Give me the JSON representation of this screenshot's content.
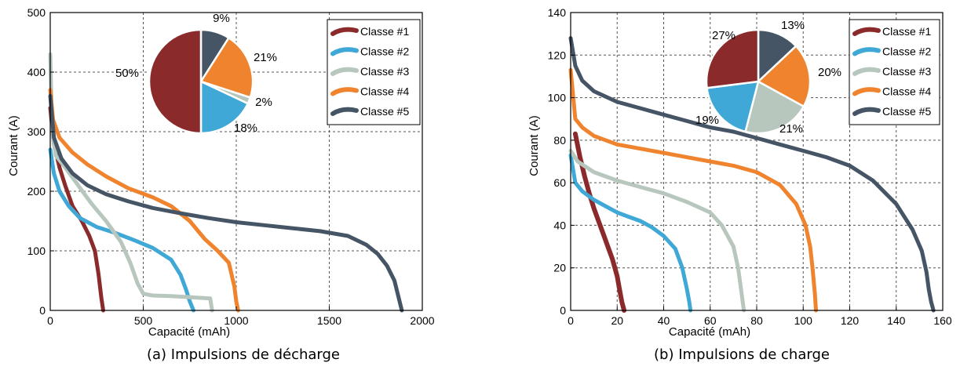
{
  "colors": {
    "Classe #1": "#8B2A2A",
    "Classe #2": "#3FA8D6",
    "Classe #3": "#B8C7BE",
    "Classe #4": "#F0842E",
    "Classe #5": "#465565"
  },
  "chart_data": [
    {
      "type": "line",
      "caption": "(a) Impulsions de décharge",
      "xlabel": "Capacité (mAh)",
      "ylabel": "Courant (A)",
      "xlim": [
        0,
        2000
      ],
      "ylim": [
        0,
        500
      ],
      "xticks": [
        0,
        500,
        1000,
        1500,
        2000
      ],
      "yticks": [
        0,
        100,
        200,
        300,
        400,
        500
      ],
      "grid": true,
      "legend": "top-right",
      "series": [
        {
          "name": "Classe #1",
          "points": [
            [
              0,
              340
            ],
            [
              20,
              280
            ],
            [
              50,
              240
            ],
            [
              80,
              210
            ],
            [
              120,
              175
            ],
            [
              170,
              150
            ],
            [
              210,
              125
            ],
            [
              240,
              100
            ],
            [
              260,
              60
            ],
            [
              275,
              20
            ],
            [
              285,
              0
            ]
          ]
        },
        {
          "name": "Classe #2",
          "points": [
            [
              0,
              270
            ],
            [
              20,
              230
            ],
            [
              50,
              200
            ],
            [
              100,
              175
            ],
            [
              160,
              155
            ],
            [
              250,
              140
            ],
            [
              350,
              130
            ],
            [
              450,
              118
            ],
            [
              550,
              105
            ],
            [
              650,
              85
            ],
            [
              700,
              60
            ],
            [
              730,
              35
            ],
            [
              750,
              15
            ],
            [
              770,
              0
            ]
          ]
        },
        {
          "name": "Classe #3",
          "points": [
            [
              0,
              430
            ],
            [
              10,
              300
            ],
            [
              30,
              260
            ],
            [
              80,
              240
            ],
            [
              150,
              210
            ],
            [
              220,
              180
            ],
            [
              300,
              150
            ],
            [
              380,
              115
            ],
            [
              430,
              80
            ],
            [
              470,
              45
            ],
            [
              500,
              28
            ],
            [
              550,
              25
            ],
            [
              650,
              24
            ],
            [
              760,
              22
            ],
            [
              860,
              20
            ],
            [
              870,
              0
            ]
          ]
        },
        {
          "name": "Classe #4",
          "points": [
            [
              0,
              370
            ],
            [
              15,
              320
            ],
            [
              50,
              290
            ],
            [
              120,
              265
            ],
            [
              200,
              245
            ],
            [
              300,
              225
            ],
            [
              420,
              205
            ],
            [
              550,
              190
            ],
            [
              650,
              175
            ],
            [
              750,
              150
            ],
            [
              830,
              120
            ],
            [
              900,
              100
            ],
            [
              960,
              80
            ],
            [
              990,
              40
            ],
            [
              1000,
              15
            ],
            [
              1010,
              0
            ]
          ]
        },
        {
          "name": "Classe #5",
          "points": [
            [
              0,
              360
            ],
            [
              20,
              290
            ],
            [
              60,
              255
            ],
            [
              120,
              230
            ],
            [
              200,
              210
            ],
            [
              300,
              195
            ],
            [
              420,
              183
            ],
            [
              550,
              172
            ],
            [
              700,
              163
            ],
            [
              850,
              155
            ],
            [
              1000,
              148
            ],
            [
              1150,
              143
            ],
            [
              1300,
              138
            ],
            [
              1450,
              133
            ],
            [
              1600,
              125
            ],
            [
              1700,
              110
            ],
            [
              1760,
              95
            ],
            [
              1810,
              75
            ],
            [
              1850,
              50
            ],
            [
              1870,
              25
            ],
            [
              1890,
              0
            ]
          ]
        }
      ],
      "pie": {
        "slices": [
          {
            "name": "Classe #5",
            "label": "9%",
            "value": 9
          },
          {
            "name": "Classe #4",
            "label": "21%",
            "value": 21
          },
          {
            "name": "Classe #3",
            "label": "2%",
            "value": 2
          },
          {
            "name": "Classe #2",
            "label": "18%",
            "value": 18
          },
          {
            "name": "Classe #1",
            "label": "50%",
            "value": 50
          }
        ]
      }
    },
    {
      "type": "line",
      "caption": "(b) Impulsions de charge",
      "xlabel": "Capacité (mAh)",
      "ylabel": "Courant (A)",
      "xlim": [
        0,
        160
      ],
      "ylim": [
        0,
        140
      ],
      "xticks": [
        0,
        20,
        40,
        60,
        80,
        100,
        120,
        140,
        160
      ],
      "yticks": [
        0,
        20,
        40,
        60,
        80,
        100,
        120,
        140
      ],
      "grid": true,
      "legend": "top-right",
      "series": [
        {
          "name": "Classe #1",
          "points": [
            [
              2,
              83
            ],
            [
              4,
              72
            ],
            [
              6,
              63
            ],
            [
              8,
              55
            ],
            [
              10,
              48
            ],
            [
              12,
              42
            ],
            [
              14,
              36
            ],
            [
              16,
              30
            ],
            [
              18,
              24
            ],
            [
              20,
              16
            ],
            [
              21,
              10
            ],
            [
              22,
              4
            ],
            [
              23,
              0
            ]
          ]
        },
        {
          "name": "Classe #2",
          "points": [
            [
              0,
              73
            ],
            [
              2,
              60
            ],
            [
              5,
              56
            ],
            [
              10,
              52
            ],
            [
              15,
              49
            ],
            [
              20,
              46
            ],
            [
              25,
              44
            ],
            [
              30,
              42
            ],
            [
              35,
              39
            ],
            [
              40,
              35
            ],
            [
              45,
              29
            ],
            [
              48,
              20
            ],
            [
              50,
              10
            ],
            [
              51,
              4
            ],
            [
              51.5,
              0
            ]
          ]
        },
        {
          "name": "Classe #3",
          "points": [
            [
              0,
              75
            ],
            [
              3,
              70
            ],
            [
              10,
              65
            ],
            [
              20,
              61
            ],
            [
              30,
              58
            ],
            [
              40,
              55
            ],
            [
              50,
              51
            ],
            [
              60,
              46
            ],
            [
              65,
              40
            ],
            [
              70,
              30
            ],
            [
              72,
              20
            ],
            [
              73,
              12
            ],
            [
              74,
              4
            ],
            [
              74.5,
              0
            ]
          ]
        },
        {
          "name": "Classe #4",
          "points": [
            [
              0,
              113
            ],
            [
              2,
              90
            ],
            [
              5,
              86
            ],
            [
              10,
              82
            ],
            [
              20,
              78
            ],
            [
              30,
              76
            ],
            [
              40,
              74
            ],
            [
              50,
              72
            ],
            [
              60,
              70
            ],
            [
              70,
              68
            ],
            [
              80,
              65
            ],
            [
              90,
              59
            ],
            [
              97,
              50
            ],
            [
              101,
              40
            ],
            [
              103,
              30
            ],
            [
              104,
              20
            ],
            [
              105,
              8
            ],
            [
              105.5,
              0
            ]
          ]
        },
        {
          "name": "Classe #5",
          "points": [
            [
              0,
              128
            ],
            [
              2,
              115
            ],
            [
              5,
              108
            ],
            [
              10,
              103
            ],
            [
              20,
              98
            ],
            [
              30,
              95
            ],
            [
              40,
              92
            ],
            [
              50,
              89
            ],
            [
              60,
              86
            ],
            [
              70,
              84
            ],
            [
              80,
              81
            ],
            [
              90,
              78
            ],
            [
              100,
              75
            ],
            [
              110,
              72
            ],
            [
              120,
              68
            ],
            [
              130,
              61
            ],
            [
              140,
              50
            ],
            [
              147,
              38
            ],
            [
              151,
              28
            ],
            [
              153,
              18
            ],
            [
              154,
              10
            ],
            [
              155,
              4
            ],
            [
              156,
              0
            ]
          ]
        }
      ],
      "pie": {
        "slices": [
          {
            "name": "Classe #5",
            "label": "13%",
            "value": 13
          },
          {
            "name": "Classe #4",
            "label": "20%",
            "value": 20
          },
          {
            "name": "Classe #3",
            "label": "21%",
            "value": 21
          },
          {
            "name": "Classe #2",
            "label": "19%",
            "value": 19
          },
          {
            "name": "Classe #1",
            "label": "27%",
            "value": 27
          }
        ]
      }
    }
  ],
  "legend_labels": [
    "Classe #1",
    "Classe #2",
    "Classe #3",
    "Classe #4",
    "Classe #5"
  ]
}
